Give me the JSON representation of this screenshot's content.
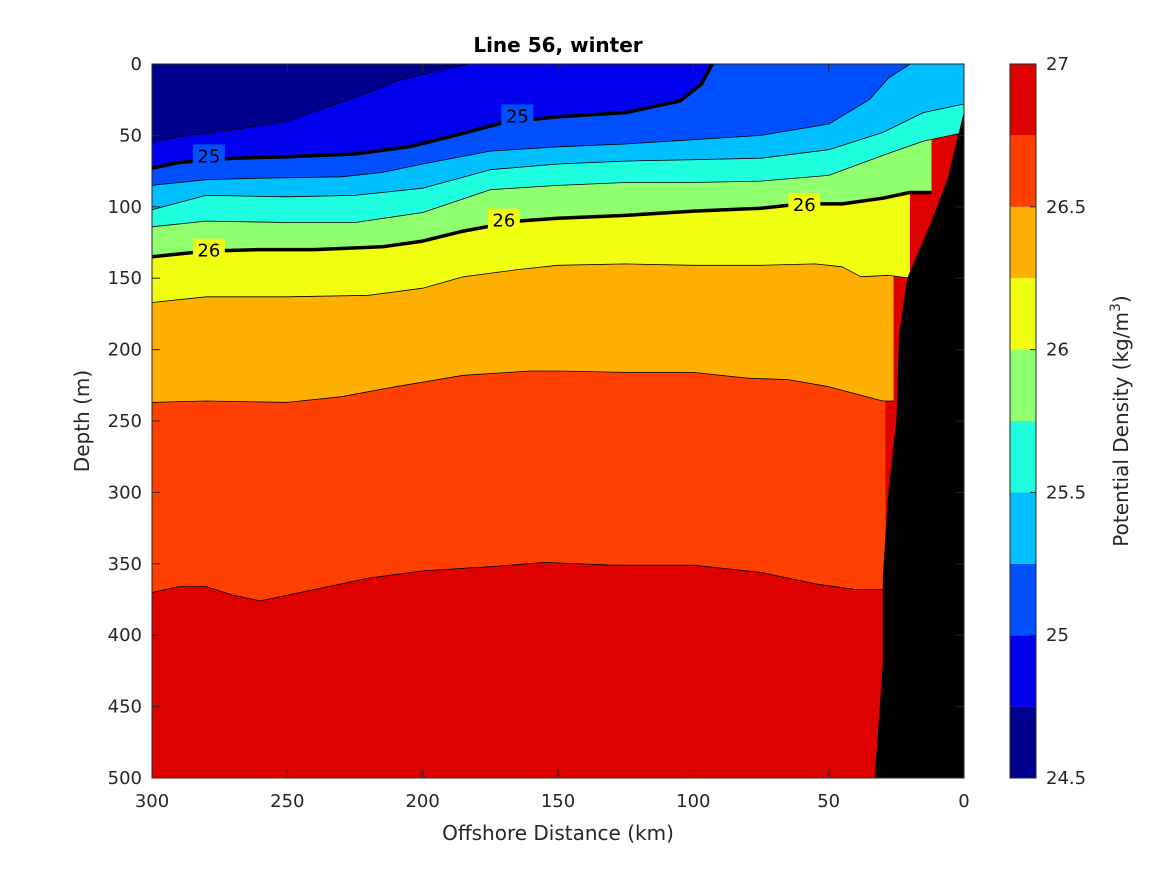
{
  "chart_data": {
    "type": "contour",
    "title": "Line 56, winter",
    "xlabel": "Offshore Distance (km)",
    "ylabel": "Depth (m)",
    "xlim": [
      300,
      0
    ],
    "ylim": [
      500,
      0
    ],
    "x_reversed": true,
    "y_reversed": true,
    "x_ticks": [
      "300",
      "250",
      "200",
      "150",
      "100",
      "50",
      "0"
    ],
    "y_ticks": [
      "0",
      "50",
      "100",
      "150",
      "200",
      "250",
      "300",
      "350",
      "400",
      "450",
      "500"
    ],
    "colorbar": {
      "label": "Potential Density (kg/m",
      "label_sup": "3",
      "label_end": ")",
      "levels": [
        24.5,
        24.75,
        25.0,
        25.25,
        25.5,
        25.75,
        26.0,
        26.25,
        26.5,
        26.75,
        27.0
      ],
      "tick_labels": [
        "24.5",
        "25",
        "25.5",
        "26",
        "26.5",
        "27"
      ],
      "tick_values": [
        24.5,
        25,
        25.5,
        26,
        26.5,
        27
      ],
      "colors": [
        "#00008f",
        "#0000ef",
        "#0050ff",
        "#00bfff",
        "#1fffdf",
        "#8fff6f",
        "#efff0f",
        "#ffaf00",
        "#ff4000",
        "#df0000"
      ]
    },
    "contours": [
      {
        "level": 24.75,
        "points": [
          [
            300,
            55
          ],
          [
            290,
            51
          ],
          [
            270,
            46
          ],
          [
            250,
            40
          ],
          [
            235,
            30
          ],
          [
            220,
            20
          ],
          [
            210,
            12
          ],
          [
            195,
            5
          ],
          [
            183,
            0
          ]
        ]
      },
      {
        "level": 25.0,
        "points": [
          [
            300,
            73
          ],
          [
            290,
            69
          ],
          [
            270,
            66
          ],
          [
            250,
            65
          ],
          [
            225,
            63
          ],
          [
            205,
            58
          ],
          [
            190,
            51
          ],
          [
            170,
            41
          ],
          [
            150,
            37
          ],
          [
            125,
            34
          ],
          [
            105,
            26
          ],
          [
            97,
            14
          ],
          [
            93,
            0
          ]
        ]
      },
      {
        "level": 25.25,
        "points": [
          [
            300,
            85
          ],
          [
            280,
            81
          ],
          [
            260,
            80
          ],
          [
            230,
            79
          ],
          [
            215,
            76
          ],
          [
            200,
            70
          ],
          [
            175,
            61
          ],
          [
            150,
            58
          ],
          [
            125,
            56
          ],
          [
            100,
            53
          ],
          [
            75,
            50
          ],
          [
            50,
            42
          ],
          [
            35,
            25
          ],
          [
            28,
            10
          ],
          [
            20,
            0
          ]
        ]
      },
      {
        "level": 25.5,
        "points": [
          [
            300,
            102
          ],
          [
            280,
            92
          ],
          [
            250,
            93
          ],
          [
            225,
            92
          ],
          [
            200,
            87
          ],
          [
            175,
            74
          ],
          [
            150,
            70
          ],
          [
            125,
            68
          ],
          [
            100,
            67
          ],
          [
            75,
            66
          ],
          [
            50,
            60
          ],
          [
            30,
            48
          ],
          [
            15,
            34
          ],
          [
            0,
            28
          ]
        ]
      },
      {
        "level": 25.75,
        "points": [
          [
            300,
            114
          ],
          [
            280,
            110
          ],
          [
            250,
            111
          ],
          [
            225,
            111
          ],
          [
            200,
            104
          ],
          [
            175,
            88
          ],
          [
            150,
            85
          ],
          [
            125,
            83
          ],
          [
            100,
            83
          ],
          [
            75,
            82
          ],
          [
            50,
            78
          ],
          [
            30,
            64
          ],
          [
            15,
            54
          ],
          [
            0,
            48
          ]
        ]
      },
      {
        "level": 26.0,
        "points": [
          [
            300,
            135
          ],
          [
            280,
            131
          ],
          [
            260,
            130
          ],
          [
            240,
            130
          ],
          [
            215,
            128
          ],
          [
            200,
            124
          ],
          [
            185,
            117
          ],
          [
            165,
            110
          ],
          [
            150,
            108
          ],
          [
            125,
            106
          ],
          [
            100,
            103
          ],
          [
            75,
            101
          ],
          [
            60,
            98
          ],
          [
            45,
            98
          ],
          [
            30,
            94
          ],
          [
            20,
            90
          ],
          [
            12,
            90
          ]
        ]
      },
      {
        "level": 26.25,
        "points": [
          [
            300,
            167
          ],
          [
            280,
            163
          ],
          [
            250,
            163
          ],
          [
            220,
            162
          ],
          [
            200,
            157
          ],
          [
            185,
            149
          ],
          [
            165,
            144
          ],
          [
            150,
            141
          ],
          [
            125,
            140
          ],
          [
            100,
            141
          ],
          [
            75,
            141
          ],
          [
            55,
            140
          ],
          [
            45,
            142
          ],
          [
            38,
            149
          ],
          [
            28,
            148
          ],
          [
            20,
            150
          ]
        ]
      },
      {
        "level": 26.5,
        "points": [
          [
            300,
            237
          ],
          [
            280,
            236
          ],
          [
            250,
            237
          ],
          [
            230,
            233
          ],
          [
            210,
            226
          ],
          [
            185,
            218
          ],
          [
            160,
            215
          ],
          [
            150,
            215
          ],
          [
            125,
            216
          ],
          [
            100,
            216
          ],
          [
            80,
            220
          ],
          [
            65,
            221
          ],
          [
            50,
            226
          ],
          [
            30,
            236
          ],
          [
            26,
            236
          ]
        ]
      },
      {
        "level": 26.75,
        "points": [
          [
            300,
            370
          ],
          [
            290,
            366
          ],
          [
            280,
            366
          ],
          [
            270,
            372
          ],
          [
            260,
            376
          ],
          [
            240,
            368
          ],
          [
            220,
            360
          ],
          [
            200,
            355
          ],
          [
            175,
            352
          ],
          [
            155,
            349
          ],
          [
            130,
            351
          ],
          [
            100,
            351
          ],
          [
            75,
            356
          ],
          [
            55,
            364
          ],
          [
            40,
            368
          ],
          [
            30,
            368
          ],
          [
            29,
            369
          ]
        ]
      }
    ],
    "labeled_contours": [
      {
        "level": 25.0,
        "labels": [
          {
            "text": "25",
            "x": 279,
            "y": 64
          },
          {
            "text": "25",
            "x": 165,
            "y": 36
          }
        ]
      },
      {
        "level": 26.0,
        "labels": [
          {
            "text": "26",
            "x": 279,
            "y": 130
          },
          {
            "text": "26",
            "x": 170,
            "y": 109
          },
          {
            "text": "26",
            "x": 59,
            "y": 98
          }
        ]
      }
    ],
    "bathymetry": {
      "color": "#000000",
      "points": [
        [
          33,
          500
        ],
        [
          30,
          420
        ],
        [
          30,
          360
        ],
        [
          28,
          300
        ],
        [
          25,
          250
        ],
        [
          24,
          190
        ],
        [
          21,
          150
        ],
        [
          12,
          110
        ],
        [
          6,
          80
        ],
        [
          0,
          33
        ]
      ]
    }
  }
}
